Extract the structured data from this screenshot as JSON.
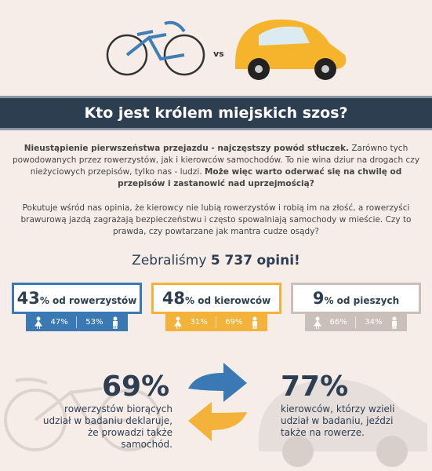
{
  "header": {
    "vs": "vs"
  },
  "banner": {
    "title": "Kto jest królem miejskich szos?"
  },
  "intro": {
    "p1_bold": "Nieustąpienie pierwszeństwa przejazdu - najczęstszy powód stłuczek.",
    "p1_text": "Zarówno tych powodowanych przez rowerzystów, jak i kierowców samochodów. To nie wina dziur na drogach czy nieżyciowych przepisów, tylko nas - ludzi.",
    "p1_bold2": "Może więc warto oderwać się na chwilę od przepisów i zastanowić nad uprzejmością?",
    "p2": "Pokutuje wśród nas opinia, że kierowcy nie lubią rowerzystów i robią im na złość, a rowerzyści brawurową jazdą zagrażają bezpieczeństwu i często spowalniają samochody w mieście. Czy to prawda, czy powtarzane jak mantra cudze osądy?"
  },
  "summary": {
    "prefix": "Zebraliśmy",
    "count": "5 737",
    "suffix": "opini!"
  },
  "groups": [
    {
      "share": "43",
      "label": "% od rowerzystów",
      "color": "#3b79b4",
      "women": "47%",
      "men": "53%"
    },
    {
      "share": "48",
      "label": "% od kierowców",
      "color": "#f3b23a",
      "women": "31%",
      "men": "69%"
    },
    {
      "share": "9",
      "label": "% od pieszych",
      "color": "#cbbfba",
      "women": "66%",
      "men": "34%"
    }
  ],
  "facts": [
    {
      "value": "69%",
      "text": "rowerzystów biorących udział w badaniu deklaruje, że prowadzi także samochód."
    },
    {
      "value": "77%",
      "text": "kierowców, którzy wzieli udział w badaniu, jeździ także na rowerze."
    }
  ]
}
